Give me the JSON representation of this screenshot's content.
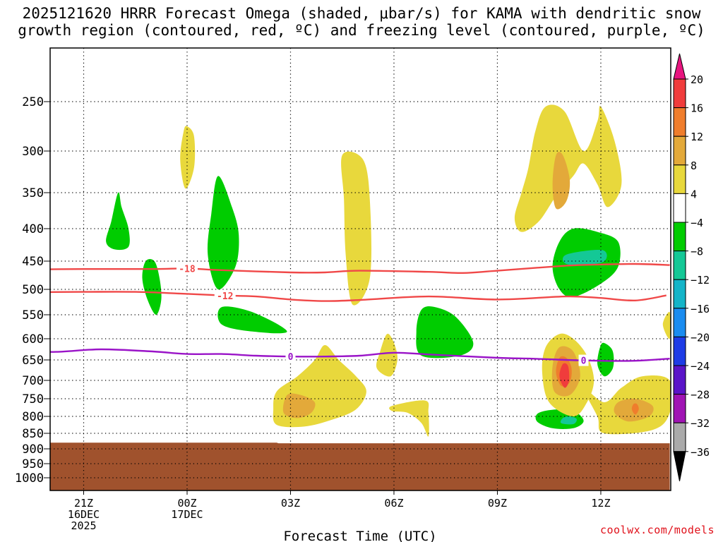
{
  "header": {
    "title_line1": "2025121620 HRRR Forecast Omega (shaded, μbar/s) for KAMA with dendritic snow",
    "title_line2": "growth region (contoured, red, ºC) and freezing level (contoured, purple, ºC)"
  },
  "footer": {
    "credit": "coolwx.com/models"
  },
  "chart_data": {
    "type": "time-height contour",
    "title": "2025121620 HRRR Forecast Omega (shaded, μbar/s) for KAMA with dendritic snow growth region (contoured, red, ºC) and freezing level (contoured, purple, ºC)",
    "xlabel": "Forecast Time (UTC)",
    "ylabel": "",
    "x_unit": "forecast hour from 2025121620",
    "xlim": [
      0,
      18
    ],
    "ylim_hPa": [
      200,
      1050
    ],
    "x_ticks": [
      {
        "hour": 1,
        "lines": [
          "21Z",
          "16DEC",
          "2025"
        ]
      },
      {
        "hour": 4,
        "lines": [
          "00Z",
          "17DEC"
        ]
      },
      {
        "hour": 7,
        "lines": [
          "03Z"
        ]
      },
      {
        "hour": 10,
        "lines": [
          "06Z"
        ]
      },
      {
        "hour": 13,
        "lines": [
          "09Z"
        ]
      },
      {
        "hour": 16,
        "lines": [
          "12Z"
        ]
      }
    ],
    "y_ticks": [
      "250",
      "300",
      "350",
      "400",
      "450",
      "500",
      "550",
      "600",
      "650",
      "700",
      "750",
      "800",
      "850",
      "900",
      "950",
      "1000"
    ],
    "grid": true,
    "colorbar": {
      "position": "right",
      "labels": [
        "20",
        "16",
        "12",
        "8",
        "4",
        "−4",
        "−8",
        "−12",
        "−16",
        "−20",
        "−24",
        "−28",
        "−32",
        "−36"
      ],
      "bins": [
        {
          "range": ">20",
          "color": "#e8157f"
        },
        {
          "range": "16 to 20",
          "color": "#f03c3c"
        },
        {
          "range": "12 to 16",
          "color": "#ef7d2c"
        },
        {
          "range": "8 to 12",
          "color": "#e3a93a"
        },
        {
          "range": "4 to 8",
          "color": "#e8d83c"
        },
        {
          "range": "-4 to 4",
          "color": "#ffffff"
        },
        {
          "range": "-8 to -4",
          "color": "#00cc00"
        },
        {
          "range": "-12 to -8",
          "color": "#14c896"
        },
        {
          "range": "-16 to -12",
          "color": "#14b4c8"
        },
        {
          "range": "-20 to -16",
          "color": "#1a8cf0"
        },
        {
          "range": "-24 to -20",
          "color": "#1e3ce6"
        },
        {
          "range": "-28 to -24",
          "color": "#5a14c8"
        },
        {
          "range": "-32 to -28",
          "color": "#a014b4"
        },
        {
          "range": "-36 to -32",
          "color": "#aaaaaa"
        },
        {
          "range": "<-36",
          "color": "#000000"
        }
      ]
    },
    "terrain": {
      "color": "#a0522d",
      "surface_hPa": [
        {
          "hour": -1,
          "p": 880
        },
        {
          "hour": 6.6,
          "p": 880
        },
        {
          "hour": 6.65,
          "p": 882
        },
        {
          "hour": 18,
          "p": 882
        }
      ]
    },
    "contours": [
      {
        "name": "-18 °C isotherm",
        "label": "-18",
        "color": "#f04848",
        "label_hour": 4.0,
        "points": [
          [
            -1,
            465
          ],
          [
            1,
            464
          ],
          [
            3,
            464
          ],
          [
            4,
            463
          ],
          [
            5,
            466
          ],
          [
            7,
            470
          ],
          [
            8,
            470
          ],
          [
            9,
            467
          ],
          [
            11,
            469
          ],
          [
            12,
            471
          ],
          [
            13,
            467
          ],
          [
            15,
            458
          ],
          [
            16,
            456
          ],
          [
            17,
            455
          ],
          [
            18,
            457
          ]
        ]
      },
      {
        "name": "-12 °C isotherm",
        "label": "-12",
        "color": "#f04848",
        "label_hour": 5.1,
        "points": [
          [
            -1,
            506
          ],
          [
            1,
            505
          ],
          [
            2.5,
            505
          ],
          [
            3.7,
            508
          ],
          [
            5,
            512
          ],
          [
            6,
            514
          ],
          [
            7,
            520
          ],
          [
            8,
            523
          ],
          [
            9,
            521
          ],
          [
            11,
            514
          ],
          [
            13,
            520
          ],
          [
            15,
            514
          ],
          [
            16,
            517
          ],
          [
            17,
            522
          ],
          [
            17.9,
            512
          ]
        ]
      },
      {
        "name": "0 °C freezing level",
        "label": "0",
        "color": "#9a14c8",
        "label_hour": 7.0,
        "points": [
          [
            -1,
            630
          ],
          [
            0.2,
            631
          ],
          [
            1.5,
            625
          ],
          [
            3,
            630
          ],
          [
            4,
            636
          ],
          [
            5,
            636
          ],
          [
            6,
            640
          ],
          [
            7,
            642
          ],
          [
            8,
            642
          ],
          [
            9,
            640
          ],
          [
            10,
            633
          ],
          [
            11,
            637
          ],
          [
            13,
            645
          ],
          [
            14,
            647
          ],
          [
            15,
            650
          ],
          [
            16,
            652
          ],
          [
            17,
            652
          ],
          [
            18,
            647
          ]
        ]
      }
    ],
    "contour_label_hour_0C_second": 15.5,
    "regions": [
      {
        "level": "-8 to -4",
        "color": "#00cc00",
        "points": [
          [
            2.0,
            350
          ],
          [
            1.8,
            390
          ],
          [
            1.65,
            420
          ],
          [
            1.9,
            432
          ],
          [
            2.3,
            428
          ],
          [
            2.3,
            400
          ],
          [
            2.1,
            370
          ]
        ]
      },
      {
        "level": "-8 to -4",
        "color": "#00cc00",
        "points": [
          [
            2.8,
            450
          ],
          [
            2.7,
            480
          ],
          [
            2.85,
            520
          ],
          [
            3.1,
            550
          ],
          [
            3.25,
            520
          ],
          [
            3.2,
            480
          ],
          [
            3.05,
            450
          ]
        ]
      },
      {
        "level": "-8 to -4",
        "color": "#00cc00",
        "points": [
          [
            4.9,
            330
          ],
          [
            4.7,
            380
          ],
          [
            4.6,
            440
          ],
          [
            4.9,
            500
          ],
          [
            5.4,
            460
          ],
          [
            5.5,
            410
          ],
          [
            5.3,
            370
          ]
        ]
      },
      {
        "level": "-8 to -4",
        "color": "#00cc00",
        "points": [
          [
            5.0,
            535
          ],
          [
            5.0,
            570
          ],
          [
            5.9,
            585
          ],
          [
            6.9,
            585
          ],
          [
            5.9,
            545
          ]
        ]
      },
      {
        "level": "-8 to -4",
        "color": "#00cc00",
        "points": [
          [
            10.8,
            540
          ],
          [
            10.65,
            585
          ],
          [
            10.8,
            640
          ],
          [
            11.9,
            640
          ],
          [
            12.3,
            610
          ],
          [
            11.8,
            555
          ],
          [
            11.2,
            535
          ]
        ]
      },
      {
        "level": "-8 to -4",
        "color": "#00cc00",
        "points": [
          [
            14.8,
            420
          ],
          [
            14.6,
            460
          ],
          [
            14.8,
            500
          ],
          [
            15.2,
            515
          ],
          [
            16,
            490
          ],
          [
            16.5,
            460
          ],
          [
            16.5,
            420
          ],
          [
            15.9,
            405
          ],
          [
            15.2,
            400
          ]
        ]
      },
      {
        "level": "-12 to -8",
        "color": "#14c896",
        "points": [
          [
            15.0,
            440
          ],
          [
            15.05,
            456
          ],
          [
            16.05,
            452
          ],
          [
            16.05,
            433
          ]
        ]
      },
      {
        "level": "-8 to -4",
        "color": "#00cc00",
        "points": [
          [
            16.0,
            615
          ],
          [
            15.9,
            660
          ],
          [
            16.1,
            690
          ],
          [
            16.35,
            670
          ],
          [
            16.35,
            630
          ],
          [
            16.15,
            612
          ]
        ]
      },
      {
        "level": "-8 to -4",
        "color": "#00cc00",
        "points": [
          [
            14.2,
            790
          ],
          [
            14.15,
            815
          ],
          [
            14.6,
            835
          ],
          [
            15.2,
            835
          ],
          [
            15.5,
            815
          ],
          [
            15.3,
            790
          ],
          [
            14.8,
            780
          ]
        ]
      },
      {
        "level": "-12 to -8",
        "color": "#14c896",
        "points": [
          [
            14.9,
            805
          ],
          [
            14.85,
            820
          ],
          [
            15.2,
            823
          ],
          [
            15.3,
            808
          ],
          [
            15.1,
            800
          ]
        ]
      },
      {
        "level": "4 to 8",
        "color": "#e8d83c",
        "points": [
          [
            3.9,
            280
          ],
          [
            3.8,
            310
          ],
          [
            3.95,
            345
          ],
          [
            4.2,
            320
          ],
          [
            4.2,
            285
          ],
          [
            4.0,
            275
          ]
        ]
      },
      {
        "level": "4 to 8",
        "color": "#e8d83c",
        "points": [
          [
            8.5,
            305
          ],
          [
            8.55,
            360
          ],
          [
            8.6,
            440
          ],
          [
            8.8,
            530
          ],
          [
            9.3,
            480
          ],
          [
            9.3,
            360
          ],
          [
            9.1,
            310
          ]
        ]
      },
      {
        "level": "4 to 8",
        "color": "#e8d83c",
        "points": [
          [
            13.7,
            350
          ],
          [
            13.9,
            320
          ],
          [
            14.1,
            280
          ],
          [
            14.4,
            255
          ],
          [
            14.95,
            260
          ],
          [
            15.5,
            300
          ],
          [
            15.9,
            270
          ],
          [
            16.0,
            255
          ],
          [
            16.4,
            290
          ],
          [
            16.6,
            340
          ],
          [
            16.2,
            370
          ],
          [
            15.9,
            340
          ],
          [
            15.5,
            315
          ],
          [
            15.2,
            330
          ],
          [
            14.7,
            355
          ],
          [
            14.2,
            390
          ],
          [
            13.7,
            405
          ],
          [
            13.5,
            385
          ]
        ]
      },
      {
        "level": "8 to 12",
        "color": "#e3a93a",
        "points": [
          [
            14.7,
            305
          ],
          [
            14.6,
            340
          ],
          [
            14.7,
            372
          ],
          [
            15.0,
            362
          ],
          [
            15.1,
            335
          ],
          [
            14.9,
            305
          ]
        ]
      },
      {
        "level": "4 to 8",
        "color": "#e8d83c",
        "points": [
          [
            8.0,
            615
          ],
          [
            7.7,
            650
          ],
          [
            7.2,
            690
          ],
          [
            6.6,
            730
          ],
          [
            6.5,
            780
          ],
          [
            6.6,
            825
          ],
          [
            7.4,
            830
          ],
          [
            8.2,
            810
          ],
          [
            8.9,
            780
          ],
          [
            9.2,
            730
          ],
          [
            8.9,
            690
          ],
          [
            8.4,
            650
          ]
        ]
      },
      {
        "level": "8 to 12",
        "color": "#e3a93a",
        "points": [
          [
            6.9,
            740
          ],
          [
            6.8,
            790
          ],
          [
            7.2,
            805
          ],
          [
            7.6,
            790
          ],
          [
            7.7,
            760
          ],
          [
            7.3,
            740
          ]
        ]
      },
      {
        "level": "4 to 8",
        "color": "#e8d83c",
        "points": [
          [
            9.8,
            590
          ],
          [
            9.6,
            630
          ],
          [
            9.5,
            670
          ],
          [
            9.9,
            690
          ],
          [
            10.1,
            650
          ],
          [
            10.0,
            610
          ]
        ]
      },
      {
        "level": "4 to 8",
        "color": "#e8d83c",
        "points": [
          [
            9.95,
            770
          ],
          [
            9.95,
            785
          ],
          [
            10.4,
            790
          ],
          [
            10.8,
            820
          ],
          [
            11.0,
            860
          ],
          [
            11.0,
            790
          ],
          [
            10.9,
            755
          ]
        ]
      },
      {
        "level": "4 to 8",
        "color": "#e8d83c",
        "points": [
          [
            14.8,
            590
          ],
          [
            14.4,
            620
          ],
          [
            14.3,
            680
          ],
          [
            14.5,
            760
          ],
          [
            15.2,
            800
          ],
          [
            15.6,
            760
          ],
          [
            15.8,
            700
          ],
          [
            15.6,
            640
          ],
          [
            15.2,
            600
          ]
        ]
      },
      {
        "level": "4 to 8",
        "color": "#e8d83c",
        "points": [
          [
            15.5,
            720
          ],
          [
            15.9,
            800
          ],
          [
            16.1,
            850
          ],
          [
            17.5,
            840
          ],
          [
            18.0,
            790
          ],
          [
            18.0,
            700
          ],
          [
            17.2,
            690
          ],
          [
            16.6,
            720
          ],
          [
            16.1,
            760
          ]
        ]
      },
      {
        "level": "4 to 8",
        "color": "#e8d83c",
        "points": [
          [
            18.0,
            545
          ],
          [
            17.8,
            570
          ],
          [
            18.0,
            600
          ]
        ]
      },
      {
        "level": "8 to 12",
        "color": "#e3a93a",
        "points": [
          [
            14.8,
            620
          ],
          [
            14.6,
            665
          ],
          [
            14.65,
            730
          ],
          [
            15.1,
            740
          ],
          [
            15.4,
            690
          ],
          [
            15.2,
            630
          ]
        ]
      },
      {
        "level": "8 to 12",
        "color": "#e3a93a",
        "points": [
          [
            16.5,
            760
          ],
          [
            16.4,
            790
          ],
          [
            16.8,
            815
          ],
          [
            17.4,
            800
          ],
          [
            17.5,
            770
          ],
          [
            17.0,
            750
          ]
        ]
      },
      {
        "level": "12 to 16",
        "color": "#ef7d2c",
        "points": [
          [
            14.8,
            645
          ],
          [
            14.7,
            680
          ],
          [
            14.85,
            715
          ],
          [
            15.1,
            705
          ],
          [
            15.15,
            670
          ],
          [
            15.0,
            645
          ]
        ]
      },
      {
        "level": "12 to 16",
        "color": "#ef7d2c",
        "points": [
          [
            16.95,
            765
          ],
          [
            16.9,
            780
          ],
          [
            17.0,
            795
          ],
          [
            17.1,
            780
          ],
          [
            17.05,
            765
          ]
        ]
      },
      {
        "level": "16 to 20",
        "color": "#f03c3c",
        "points": [
          [
            14.9,
            660
          ],
          [
            14.8,
            690
          ],
          [
            14.95,
            720
          ],
          [
            15.08,
            700
          ],
          [
            15.05,
            665
          ]
        ]
      }
    ]
  }
}
